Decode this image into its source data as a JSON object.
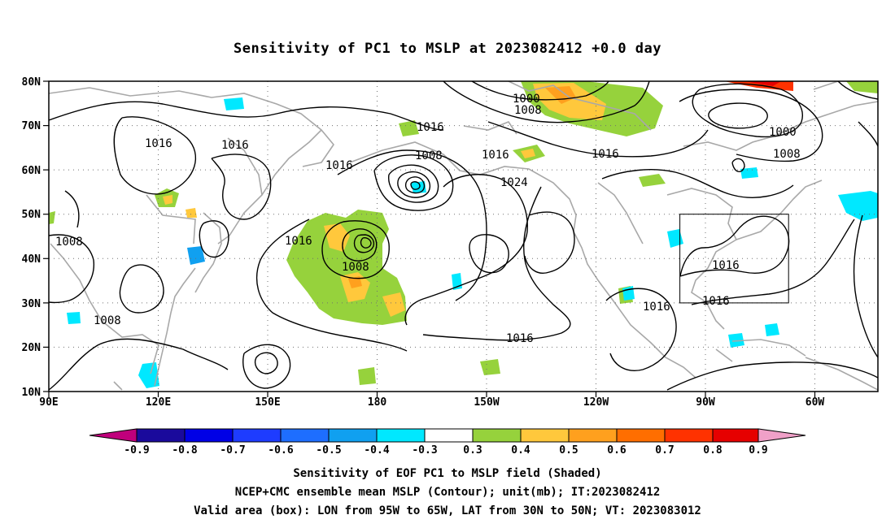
{
  "title": "Sensitivity of PC1 to MSLP at 2023082412 +0.0 day",
  "lat_labels": [
    "80N",
    "70N",
    "60N",
    "50N",
    "40N",
    "30N",
    "20N",
    "10N"
  ],
  "lon_labels": [
    "90E",
    "120E",
    "150E",
    "180",
    "150W",
    "120W",
    "90W",
    "60W"
  ],
  "contour_labels": [
    "1016",
    "1016",
    "1016",
    "1008",
    "1016",
    "1008",
    "1008",
    "1008",
    "1016",
    "1000",
    "1008",
    "1016",
    "1024",
    "1016",
    "1000",
    "1008",
    "1016",
    "1016",
    "1016",
    "1016",
    "1016"
  ],
  "colorbar": {
    "labels": [
      "-0.9",
      "-0.8",
      "-0.7",
      "-0.6",
      "-0.5",
      "-0.4",
      "-0.3",
      "0.3",
      "0.4",
      "0.5",
      "0.6",
      "0.7",
      "0.8",
      "0.9"
    ],
    "colors": [
      "#1a0a9c",
      "#0000e6",
      "#1e3cff",
      "#1e6eff",
      "#10a0f0",
      "#00e8ff",
      "#ffffff",
      "#96d23c",
      "#ffc83c",
      "#ffa01e",
      "#ff6e00",
      "#ff3200",
      "#e60000"
    ],
    "low_end_color": "#c0007c",
    "high_end_color": "#f0a0c8"
  },
  "captions": {
    "line1": "Sensitivity of EOF PC1 to MSLP field (Shaded)",
    "line2": "NCEP+CMC ensemble mean MSLP (Contour); unit(mb); IT:2023082412",
    "line3": "Valid area (box): LON from 95W to 65W, LAT from 30N to 50N; VT: 2023083012"
  }
}
